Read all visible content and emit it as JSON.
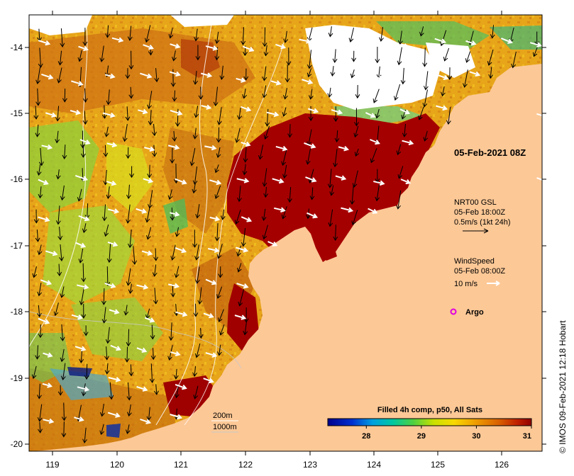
{
  "map": {
    "date_label": "05-Feb-2021 08Z",
    "lat_ticks": [
      "-14",
      "-15",
      "-16",
      "-17",
      "-18",
      "-19",
      "-20"
    ],
    "lon_ticks": [
      "119",
      "120",
      "121",
      "122",
      "123",
      "124",
      "125",
      "126"
    ],
    "current_legend": {
      "title": "NRT00 GSL",
      "time": "05-Feb 18:00Z",
      "scale": "0.5m/s (1kt 24h)"
    },
    "wind_legend": {
      "title": "WindSpeed",
      "time": "05-Feb 08:00Z",
      "scale": "10 m/s"
    },
    "argo_label": "Argo",
    "bathymetry": {
      "contour_1": "200m",
      "contour_2": "1000m"
    },
    "colorbar": {
      "title": "Filled 4h comp, p50, All Sats",
      "ticks": [
        "28",
        "29",
        "30",
        "31"
      ],
      "range": [
        27.3,
        31
      ]
    },
    "credit": "© IMOS 09-Feb-2021 12:18 Hobart"
  },
  "colors": {
    "land": "#fcc896",
    "sst_hot": "#a50000",
    "sst_warm": "#e2930f",
    "sst_mid": "#f2c000",
    "sst_cool": "#7fd235",
    "cloud": "#ffffff",
    "argo": "#e000e0"
  }
}
